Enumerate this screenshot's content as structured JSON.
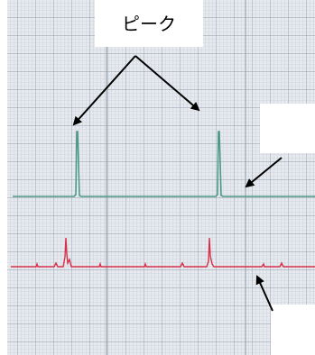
{
  "label": "ピーク"
}
